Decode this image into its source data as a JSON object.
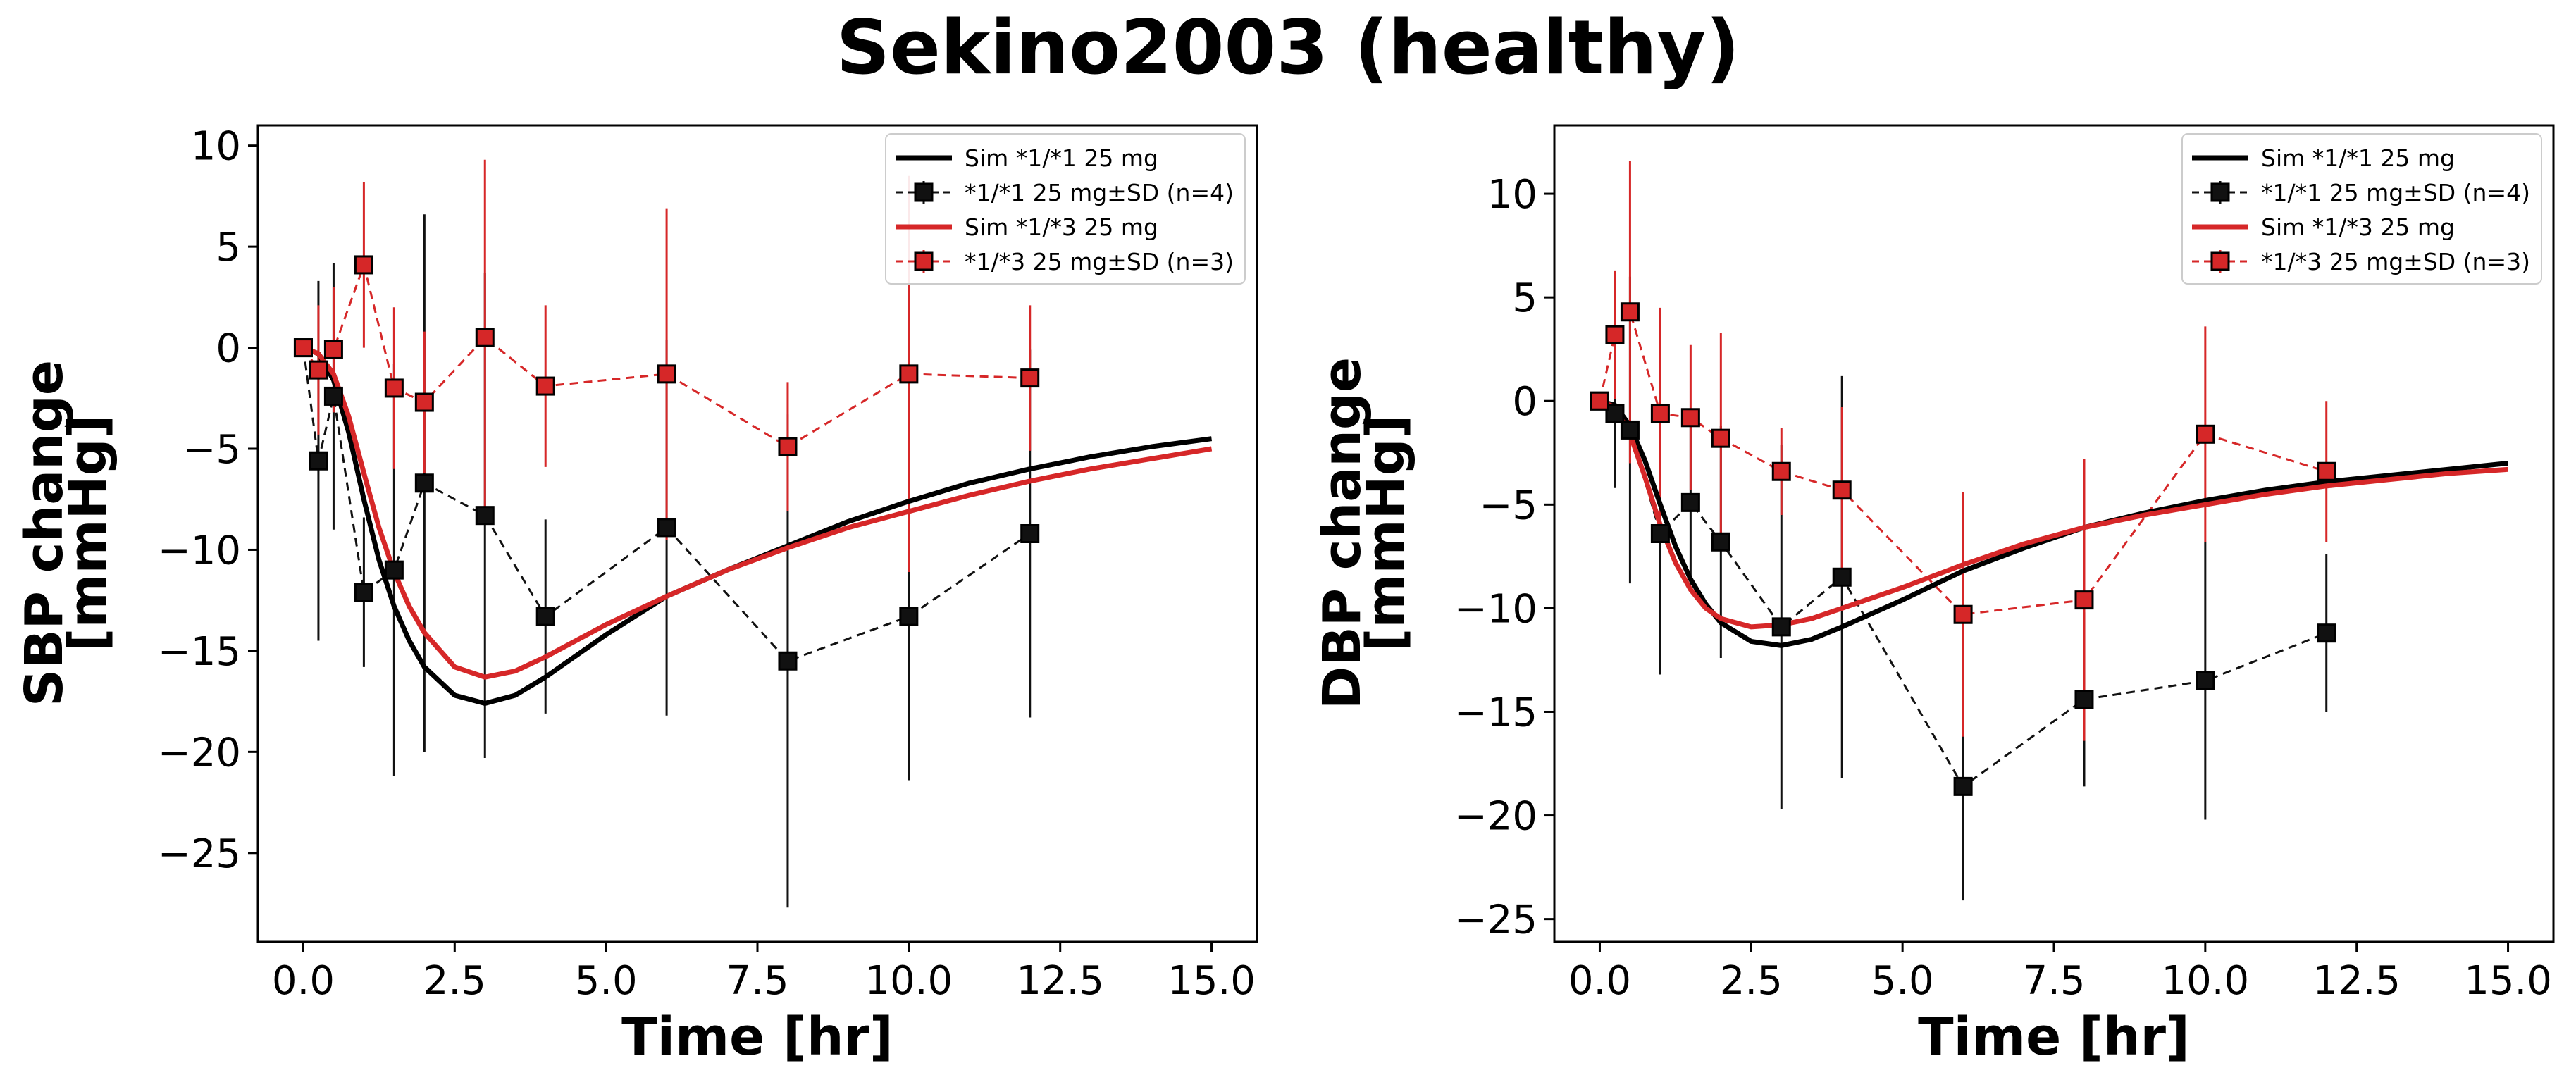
{
  "figure_title": "Sekino2003 (healthy)",
  "colors": {
    "ref": "#000000",
    "het": "#d62728",
    "marker_ref": "#111111",
    "marker_het": "#d62728"
  },
  "chart_data": [
    {
      "type": "line",
      "xlabel": "Time [hr]",
      "ylabel_line1": "SBP change",
      "ylabel_line2": "[mmHg]",
      "xlim": [
        -0.75,
        15.75
      ],
      "ylim": [
        -29.4,
        11.0
      ],
      "xticks": [
        0.0,
        2.5,
        5.0,
        7.5,
        10.0,
        12.5,
        15.0
      ],
      "yticks": [
        10,
        5,
        0,
        -5,
        -10,
        -15,
        -20,
        -25
      ],
      "xtick_labels": [
        "0.0",
        "2.5",
        "5.0",
        "7.5",
        "10.0",
        "12.5",
        "15.0"
      ],
      "ytick_labels": [
        "10",
        "5",
        "0",
        "−5",
        "−10",
        "−15",
        "−20",
        "−25"
      ],
      "legend_position": "top-right",
      "series": [
        {
          "name": "Sim *1/*1 25 mg",
          "kind": "line",
          "color": "#000000",
          "x": [
            0,
            0.25,
            0.5,
            0.75,
            1.0,
            1.25,
            1.5,
            1.75,
            2.0,
            2.5,
            3.0,
            3.5,
            4.0,
            5.0,
            6.0,
            7.0,
            8.0,
            9.0,
            10.0,
            11.0,
            12.0,
            13.0,
            14.0,
            15.0
          ],
          "y": [
            0,
            -0.3,
            -1.6,
            -4.2,
            -7.5,
            -10.5,
            -12.8,
            -14.5,
            -15.8,
            -17.2,
            -17.6,
            -17.2,
            -16.3,
            -14.2,
            -12.3,
            -11.0,
            -9.8,
            -8.6,
            -7.6,
            -6.7,
            -6.0,
            -5.4,
            -4.9,
            -4.5
          ]
        },
        {
          "name": "*1/*1 25 mg±SD (n=4)",
          "kind": "errorbar",
          "color": "#111111",
          "x": [
            0,
            0.25,
            0.5,
            1.0,
            1.5,
            2.0,
            3.0,
            4.0,
            6.0,
            8.0,
            10.0,
            12.0
          ],
          "y": [
            0,
            -5.6,
            -2.4,
            -12.1,
            -11.0,
            -6.7,
            -8.3,
            -13.3,
            -8.9,
            -15.5,
            -13.3,
            -9.2
          ],
          "sd": [
            0,
            8.9,
            6.6,
            3.7,
            10.2,
            13.3,
            12.0,
            4.8,
            9.3,
            12.2,
            8.1,
            9.1
          ]
        },
        {
          "name": "Sim *1/*3 25 mg",
          "kind": "line",
          "color": "#d62728",
          "x": [
            0,
            0.25,
            0.5,
            0.75,
            1.0,
            1.25,
            1.5,
            1.75,
            2.0,
            2.5,
            3.0,
            3.5,
            4.0,
            5.0,
            6.0,
            7.0,
            8.0,
            9.0,
            10.0,
            11.0,
            12.0,
            13.0,
            14.0,
            15.0
          ],
          "y": [
            0,
            -0.3,
            -1.3,
            -3.4,
            -6.2,
            -8.9,
            -11.1,
            -12.8,
            -14.1,
            -15.8,
            -16.3,
            -16.0,
            -15.3,
            -13.7,
            -12.3,
            -11.0,
            -9.9,
            -8.9,
            -8.1,
            -7.3,
            -6.6,
            -6.0,
            -5.5,
            -5.0
          ]
        },
        {
          "name": "*1/*3 25 mg±SD (n=3)",
          "kind": "errorbar",
          "color": "#d62728",
          "x": [
            0,
            0.25,
            0.5,
            1.0,
            1.5,
            2.0,
            3.0,
            4.0,
            6.0,
            8.0,
            10.0,
            12.0
          ],
          "y": [
            0,
            -1.1,
            -0.1,
            4.1,
            -2.0,
            -2.7,
            0.5,
            -1.9,
            -1.3,
            -4.9,
            -1.3,
            -1.5
          ],
          "sd": [
            0,
            3.2,
            3.1,
            4.1,
            4.0,
            3.5,
            8.8,
            4.0,
            8.2,
            3.2,
            9.8,
            3.6
          ]
        }
      ]
    },
    {
      "type": "line",
      "xlabel": "Time [hr]",
      "ylabel_line1": "DBP change",
      "ylabel_line2": "[mmHg]",
      "xlim": [
        -0.75,
        15.75
      ],
      "ylim": [
        -26.1,
        13.3
      ],
      "xticks": [
        0.0,
        2.5,
        5.0,
        7.5,
        10.0,
        12.5,
        15.0
      ],
      "yticks": [
        10,
        5,
        0,
        -5,
        -10,
        -15,
        -20,
        -25
      ],
      "xtick_labels": [
        "0.0",
        "2.5",
        "5.0",
        "7.5",
        "10.0",
        "12.5",
        "15.0"
      ],
      "ytick_labels": [
        "10",
        "5",
        "0",
        "−5",
        "−10",
        "−15",
        "−20",
        "−25"
      ],
      "legend_position": "top-right",
      "series": [
        {
          "name": "Sim *1/*1 25 mg",
          "kind": "line",
          "color": "#000000",
          "x": [
            0,
            0.25,
            0.5,
            0.75,
            1.0,
            1.25,
            1.5,
            1.75,
            2.0,
            2.5,
            3.0,
            3.5,
            4.0,
            5.0,
            6.0,
            7.0,
            8.0,
            9.0,
            10.0,
            11.0,
            12.0,
            13.0,
            14.0,
            15.0
          ],
          "y": [
            0,
            -0.2,
            -1.2,
            -2.9,
            -5.0,
            -7.0,
            -8.6,
            -9.8,
            -10.7,
            -11.6,
            -11.8,
            -11.5,
            -10.9,
            -9.6,
            -8.2,
            -7.1,
            -6.1,
            -5.4,
            -4.8,
            -4.3,
            -3.9,
            -3.6,
            -3.3,
            -3.0
          ]
        },
        {
          "name": "*1/*1 25 mg±SD (n=4)",
          "kind": "errorbar",
          "color": "#111111",
          "x": [
            0,
            0.25,
            0.5,
            1.0,
            1.5,
            2.0,
            3.0,
            4.0,
            6.0,
            8.0,
            10.0,
            12.0
          ],
          "y": [
            0,
            -0.6,
            -1.4,
            -6.4,
            -4.9,
            -6.8,
            -10.9,
            -8.5,
            -18.6,
            -14.4,
            -13.5,
            -11.2
          ],
          "sd": [
            0,
            3.6,
            7.4,
            6.8,
            4.0,
            5.6,
            8.8,
            9.7,
            5.5,
            4.2,
            6.7,
            3.8
          ]
        },
        {
          "name": "Sim *1/*3 25 mg",
          "kind": "line",
          "color": "#d62728",
          "x": [
            0,
            0.25,
            0.5,
            0.75,
            1.0,
            1.25,
            1.5,
            1.75,
            2.0,
            2.5,
            3.0,
            3.5,
            4.0,
            5.0,
            6.0,
            7.0,
            8.0,
            9.0,
            10.0,
            11.0,
            12.0,
            13.0,
            14.0,
            15.0
          ],
          "y": [
            0,
            -0.3,
            -1.6,
            -3.7,
            -6.0,
            -7.8,
            -9.1,
            -10.0,
            -10.5,
            -10.9,
            -10.8,
            -10.5,
            -10.0,
            -9.0,
            -7.9,
            -6.9,
            -6.1,
            -5.5,
            -5.0,
            -4.5,
            -4.1,
            -3.8,
            -3.5,
            -3.3
          ]
        },
        {
          "name": "*1/*3 25 mg±SD (n=3)",
          "kind": "errorbar",
          "color": "#d62728",
          "x": [
            0,
            0.25,
            0.5,
            1.0,
            1.5,
            2.0,
            3.0,
            4.0,
            6.0,
            8.0,
            10.0,
            12.0
          ],
          "y": [
            0,
            3.2,
            4.3,
            -0.6,
            -0.8,
            -1.8,
            -3.4,
            -4.3,
            -10.3,
            -9.6,
            -1.6,
            -3.4
          ],
          "sd": [
            0,
            3.1,
            7.3,
            5.1,
            3.5,
            5.1,
            2.1,
            4.0,
            5.9,
            6.8,
            5.2,
            3.4
          ]
        }
      ]
    }
  ]
}
